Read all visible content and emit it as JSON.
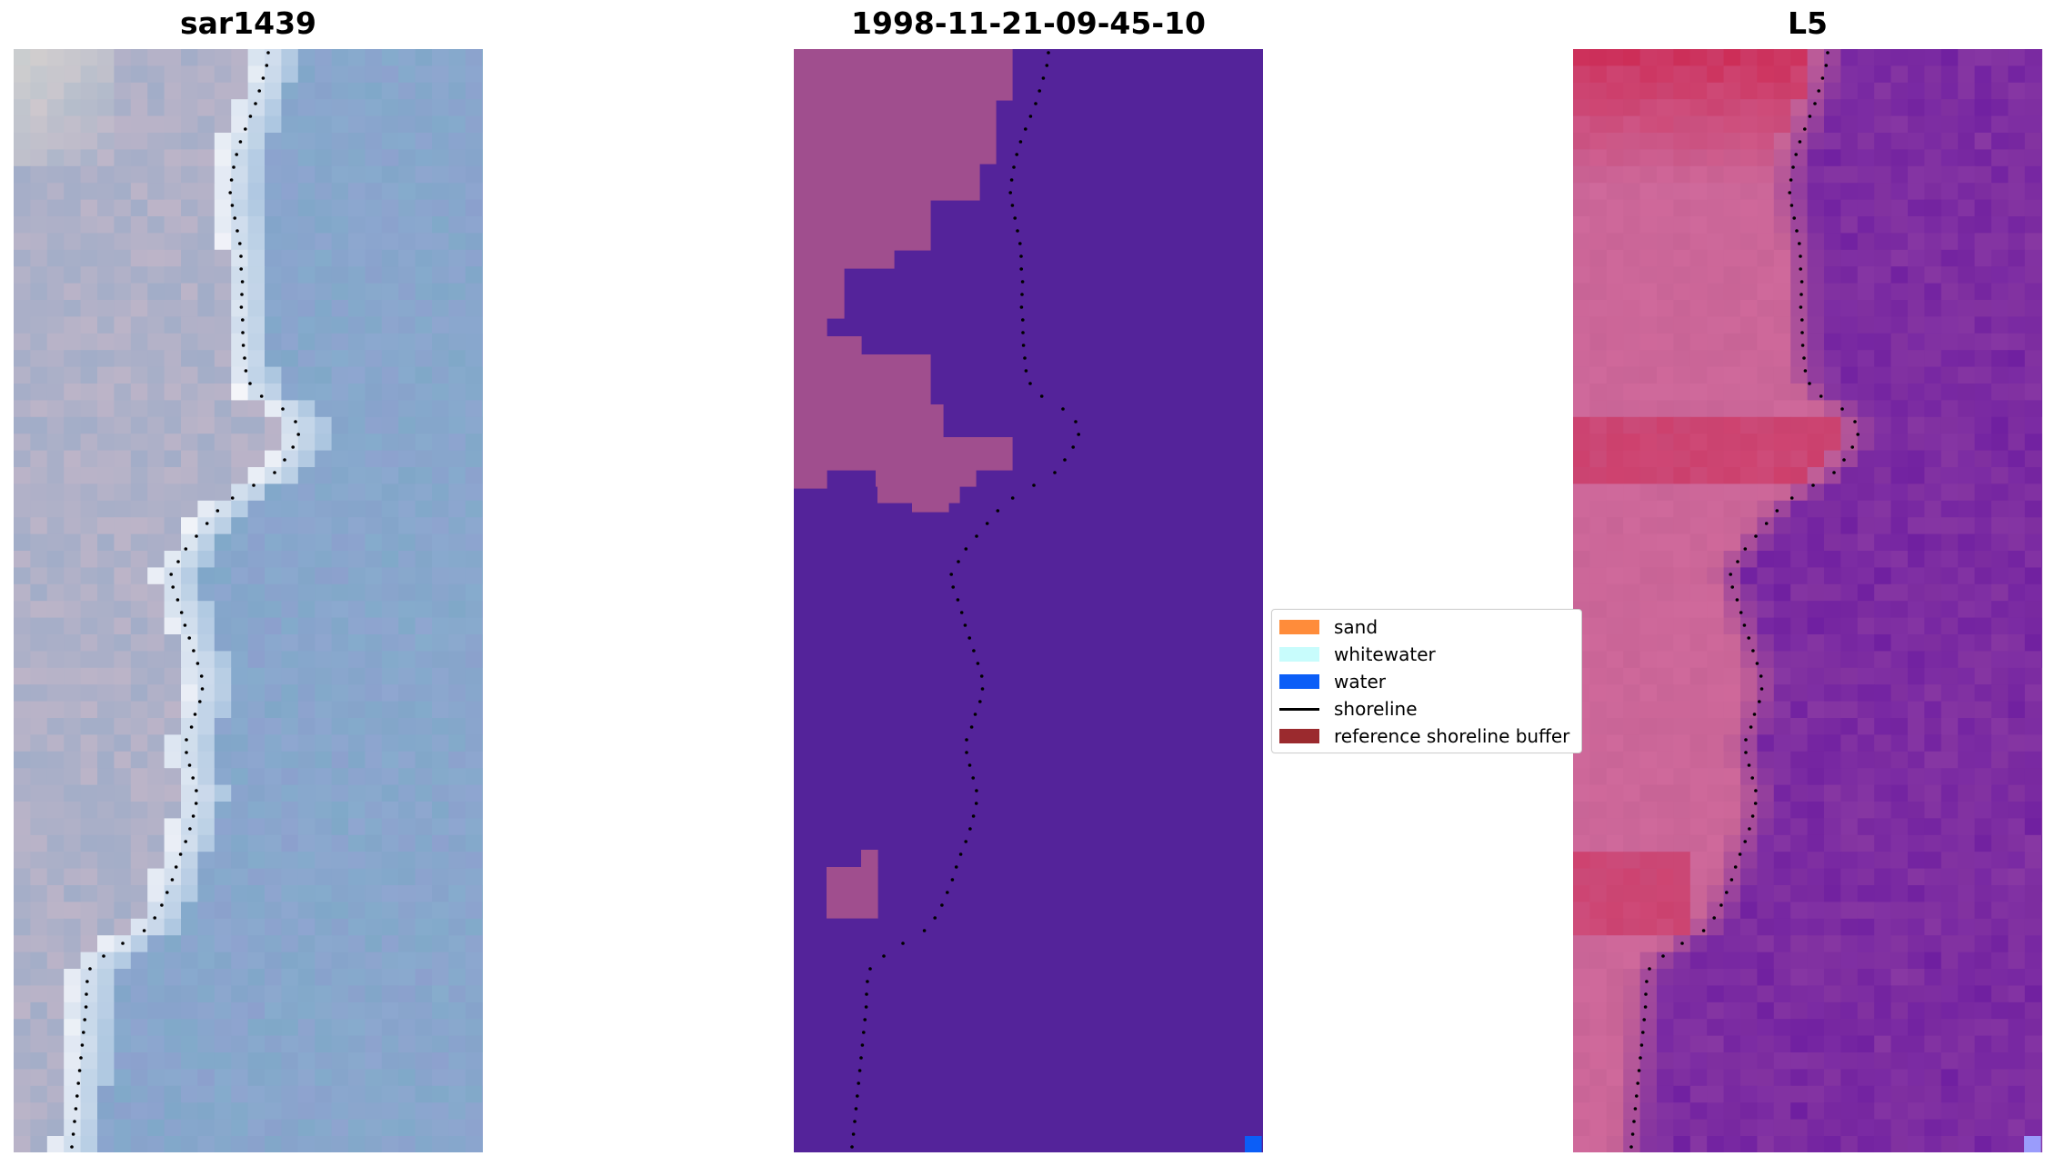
{
  "panels": [
    {
      "title": "sar1439",
      "kind": "sar"
    },
    {
      "title": "1998-11-21-09-45-10",
      "kind": "class"
    },
    {
      "title": "L5",
      "kind": "index"
    }
  ],
  "legend": {
    "items": [
      {
        "label": "sand",
        "color": "#ff8c3a",
        "type": "patch"
      },
      {
        "label": "whitewater",
        "color": "#c8fcfc",
        "type": "patch"
      },
      {
        "label": "water",
        "color": "#0b5ef7",
        "type": "patch"
      },
      {
        "label": "shoreline",
        "color": "#000000",
        "type": "line"
      },
      {
        "label": "reference shoreline buffer",
        "color": "#9b2a2e",
        "type": "patch"
      }
    ]
  },
  "colors": {
    "classification_water_fill": "#54239a",
    "classification_land_fill": "#a04e8e",
    "shoreline_dots": "#000000"
  }
}
